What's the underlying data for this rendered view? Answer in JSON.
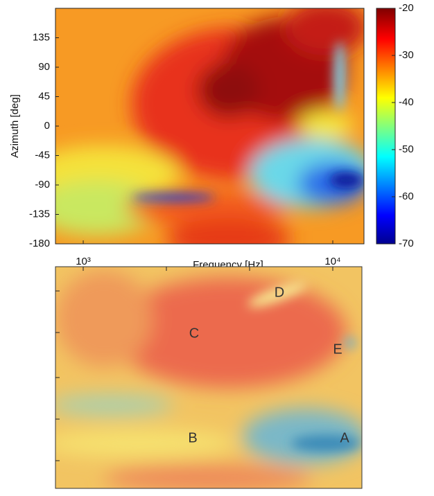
{
  "chart_data": [
    {
      "type": "heatmap",
      "xlabel": "Frequency [Hz]",
      "ylabel": "Azimuth [deg]",
      "xscale": "log",
      "xlim": [
        774,
        13335
      ],
      "xticks": [
        {
          "value": 1000,
          "label": "10³"
        },
        {
          "value": 10000,
          "label": "10⁴"
        }
      ],
      "ylim": [
        -180,
        180
      ],
      "yticks": [
        -180,
        -135,
        -90,
        -45,
        0,
        45,
        90,
        135
      ],
      "colorbar": {
        "colormap": "jet",
        "lim": [
          -70,
          -20
        ],
        "ticks": [
          -70,
          -60,
          -50,
          -40,
          -30,
          -20
        ]
      }
    },
    {
      "type": "image",
      "annotations": [
        "D",
        "C",
        "E",
        "B",
        "A"
      ]
    }
  ]
}
